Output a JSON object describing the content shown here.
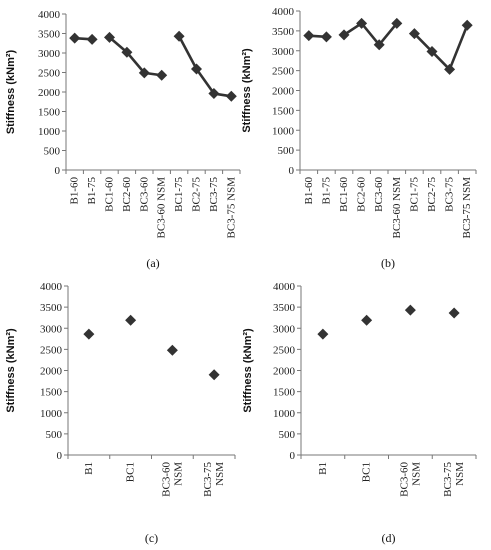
{
  "chart_data": [
    {
      "type": "line",
      "caption": "(a)",
      "ylabel": "Stiffness (kNm²)",
      "ylim": [
        0,
        4000
      ],
      "yticks": [
        0,
        500,
        1000,
        1500,
        2000,
        2500,
        3000,
        3500,
        4000
      ],
      "categories": [
        "B1-60",
        "B1-75",
        "BC1-60",
        "BC2-60",
        "BC3-60",
        "BC3-60 NSM",
        "BC1-75",
        "BC2-75",
        "BC3-75",
        "BC3-75 NSM"
      ],
      "series": [
        {
          "values": [
            3380,
            3350,
            null,
            null,
            null,
            null,
            null,
            null,
            null,
            null
          ]
        },
        {
          "values": [
            null,
            null,
            3400,
            3020,
            2490,
            2430,
            null,
            null,
            null,
            null
          ]
        },
        {
          "values": [
            null,
            null,
            null,
            null,
            null,
            null,
            3430,
            2590,
            1960,
            1890
          ]
        }
      ],
      "grid": false,
      "color": "#333333"
    },
    {
      "type": "line",
      "caption": "(b)",
      "ylabel": "Stiffness (kNm²)",
      "ylim": [
        0,
        4000
      ],
      "yticks": [
        0,
        500,
        1000,
        1500,
        2000,
        2500,
        3000,
        3500,
        4000
      ],
      "categories": [
        "B1-60",
        "B1-75",
        "BC1-60",
        "BC2-60",
        "BC3-60",
        "BC3-60 NSM",
        "BC1-75",
        "BC2-75",
        "BC3-75",
        "BC3-75 NSM"
      ],
      "series": [
        {
          "values": [
            3380,
            3350,
            null,
            null,
            null,
            null,
            null,
            null,
            null,
            null
          ]
        },
        {
          "values": [
            null,
            null,
            3400,
            3690,
            3150,
            3690,
            null,
            null,
            null,
            null
          ]
        },
        {
          "values": [
            null,
            null,
            null,
            null,
            null,
            null,
            3430,
            2980,
            2530,
            3640
          ]
        }
      ],
      "grid": false,
      "color": "#333333"
    },
    {
      "type": "scatter",
      "caption": "(c)",
      "ylabel": "Stiffness (kNm²)",
      "ylim": [
        0,
        4000
      ],
      "yticks": [
        0,
        500,
        1000,
        1500,
        2000,
        2500,
        3000,
        3500,
        4000
      ],
      "categories": [
        "B1",
        "BC1",
        "BC3-60 NSM",
        "BC3-75 NSM"
      ],
      "values": [
        2860,
        3190,
        2480,
        1900
      ],
      "grid": false,
      "color": "#333333"
    },
    {
      "type": "scatter",
      "caption": "(d)",
      "ylabel": "Stiffness (kNm²)",
      "ylim": [
        0,
        4000
      ],
      "yticks": [
        0,
        500,
        1000,
        1500,
        2000,
        2500,
        3000,
        3500,
        4000
      ],
      "categories": [
        "B1",
        "BC1",
        "BC3-60 NSM",
        "BC3-75 NSM"
      ],
      "values": [
        2860,
        3190,
        3430,
        3360
      ],
      "grid": false,
      "color": "#333333"
    }
  ]
}
